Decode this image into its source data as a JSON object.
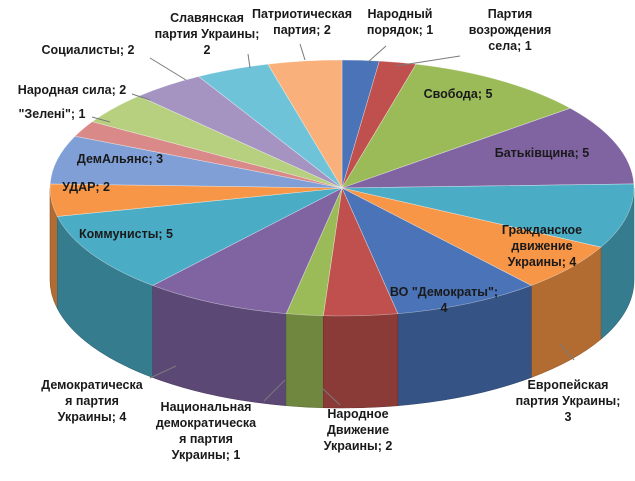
{
  "chart_data": {
    "type": "pie",
    "style": "3d",
    "title": "",
    "label_format": "{name}; {value}",
    "slices": [
      {
        "name": "Народный порядок",
        "value": 1,
        "color": "#4a73b8"
      },
      {
        "name": "Партия возрождения села",
        "value": 1,
        "color": "#c0504d"
      },
      {
        "name": "Свобода",
        "value": 5,
        "color": "#9bbb59"
      },
      {
        "name": "Батьківщина",
        "value": 5,
        "color": "#8064a2"
      },
      {
        "name": "Гражданское движение Украины",
        "value": 4,
        "color": "#4bacc6"
      },
      {
        "name": "Европейская партия Украины",
        "value": 3,
        "color": "#f79646"
      },
      {
        "name": "ВО \"Демократы\"",
        "value": 4,
        "color": "#4a73b8"
      },
      {
        "name": "Народное Движение Украины",
        "value": 2,
        "color": "#c0504d"
      },
      {
        "name": "Национальная демократическая партия Украины",
        "value": 1,
        "color": "#9bbb59"
      },
      {
        "name": "Демократическая партия Украины",
        "value": 4,
        "color": "#8064a2"
      },
      {
        "name": "Коммунисты",
        "value": 5,
        "color": "#4bacc6"
      },
      {
        "name": "УДАР",
        "value": 2,
        "color": "#f79646"
      },
      {
        "name": "ДемАльянс",
        "value": 3,
        "color": "#7f9fd6"
      },
      {
        "name": "\"Зелені\"",
        "value": 1,
        "color": "#d98a88"
      },
      {
        "name": "Народная сила",
        "value": 2,
        "color": "#b6d07f"
      },
      {
        "name": "Социалисты",
        "value": 2,
        "color": "#a593c2"
      },
      {
        "name": "Славянская партия Украины",
        "value": 2,
        "color": "#6fc3d8"
      },
      {
        "name": "Патриотическая партия",
        "value": 2,
        "color": "#f9b07a"
      }
    ],
    "legend": "none",
    "data_labels": "on"
  }
}
